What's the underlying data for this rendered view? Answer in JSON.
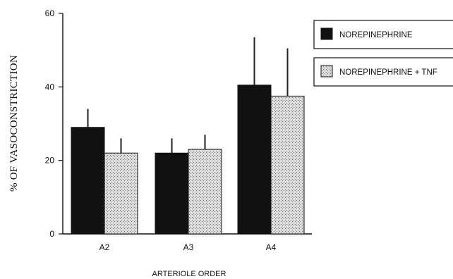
{
  "chart_data": {
    "type": "bar",
    "title": "",
    "xlabel": "ARTERIOLE ORDER",
    "ylabel": "% OF VASOCONSTRICTION",
    "categories": [
      "A2",
      "A3",
      "A4"
    ],
    "ylim": [
      0,
      60
    ],
    "yticks": [
      0,
      20,
      40,
      60
    ],
    "grid": false,
    "legend_position": "top-right",
    "series": [
      {
        "name": "NOREPINEPHRINE",
        "values": [
          29,
          22,
          40.5
        ],
        "error_upper": [
          34,
          26,
          53.5
        ],
        "color": "#111111",
        "pattern": "solid"
      },
      {
        "name": "NOREPINEPHRINE + TNF",
        "values": [
          22,
          23,
          37.5
        ],
        "error_upper": [
          26,
          27,
          50.5
        ],
        "color": "#cfcfcf",
        "pattern": "stipple"
      }
    ]
  }
}
